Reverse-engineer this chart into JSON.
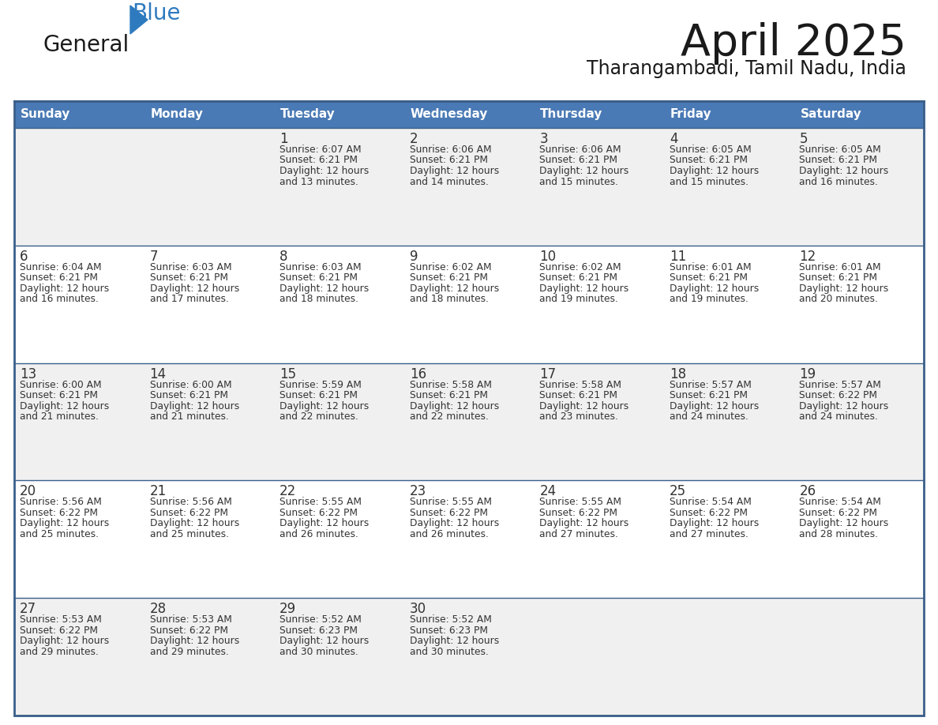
{
  "title": "April 2025",
  "subtitle": "Tharangambadi, Tamil Nadu, India",
  "logo_text1": "General",
  "logo_text2": "Blue",
  "header_color": "#4a7ab5",
  "header_text_color": "#ffffff",
  "odd_row_color": "#f0f0f0",
  "even_row_color": "#ffffff",
  "border_color": "#3a5f8a",
  "text_color": "#333333",
  "days_of_week": [
    "Sunday",
    "Monday",
    "Tuesday",
    "Wednesday",
    "Thursday",
    "Friday",
    "Saturday"
  ],
  "weeks": [
    [
      {
        "day": "",
        "info": ""
      },
      {
        "day": "",
        "info": ""
      },
      {
        "day": "1",
        "info": "Sunrise: 6:07 AM\nSunset: 6:21 PM\nDaylight: 12 hours\nand 13 minutes."
      },
      {
        "day": "2",
        "info": "Sunrise: 6:06 AM\nSunset: 6:21 PM\nDaylight: 12 hours\nand 14 minutes."
      },
      {
        "day": "3",
        "info": "Sunrise: 6:06 AM\nSunset: 6:21 PM\nDaylight: 12 hours\nand 15 minutes."
      },
      {
        "day": "4",
        "info": "Sunrise: 6:05 AM\nSunset: 6:21 PM\nDaylight: 12 hours\nand 15 minutes."
      },
      {
        "day": "5",
        "info": "Sunrise: 6:05 AM\nSunset: 6:21 PM\nDaylight: 12 hours\nand 16 minutes."
      }
    ],
    [
      {
        "day": "6",
        "info": "Sunrise: 6:04 AM\nSunset: 6:21 PM\nDaylight: 12 hours\nand 16 minutes."
      },
      {
        "day": "7",
        "info": "Sunrise: 6:03 AM\nSunset: 6:21 PM\nDaylight: 12 hours\nand 17 minutes."
      },
      {
        "day": "8",
        "info": "Sunrise: 6:03 AM\nSunset: 6:21 PM\nDaylight: 12 hours\nand 18 minutes."
      },
      {
        "day": "9",
        "info": "Sunrise: 6:02 AM\nSunset: 6:21 PM\nDaylight: 12 hours\nand 18 minutes."
      },
      {
        "day": "10",
        "info": "Sunrise: 6:02 AM\nSunset: 6:21 PM\nDaylight: 12 hours\nand 19 minutes."
      },
      {
        "day": "11",
        "info": "Sunrise: 6:01 AM\nSunset: 6:21 PM\nDaylight: 12 hours\nand 19 minutes."
      },
      {
        "day": "12",
        "info": "Sunrise: 6:01 AM\nSunset: 6:21 PM\nDaylight: 12 hours\nand 20 minutes."
      }
    ],
    [
      {
        "day": "13",
        "info": "Sunrise: 6:00 AM\nSunset: 6:21 PM\nDaylight: 12 hours\nand 21 minutes."
      },
      {
        "day": "14",
        "info": "Sunrise: 6:00 AM\nSunset: 6:21 PM\nDaylight: 12 hours\nand 21 minutes."
      },
      {
        "day": "15",
        "info": "Sunrise: 5:59 AM\nSunset: 6:21 PM\nDaylight: 12 hours\nand 22 minutes."
      },
      {
        "day": "16",
        "info": "Sunrise: 5:58 AM\nSunset: 6:21 PM\nDaylight: 12 hours\nand 22 minutes."
      },
      {
        "day": "17",
        "info": "Sunrise: 5:58 AM\nSunset: 6:21 PM\nDaylight: 12 hours\nand 23 minutes."
      },
      {
        "day": "18",
        "info": "Sunrise: 5:57 AM\nSunset: 6:21 PM\nDaylight: 12 hours\nand 24 minutes."
      },
      {
        "day": "19",
        "info": "Sunrise: 5:57 AM\nSunset: 6:22 PM\nDaylight: 12 hours\nand 24 minutes."
      }
    ],
    [
      {
        "day": "20",
        "info": "Sunrise: 5:56 AM\nSunset: 6:22 PM\nDaylight: 12 hours\nand 25 minutes."
      },
      {
        "day": "21",
        "info": "Sunrise: 5:56 AM\nSunset: 6:22 PM\nDaylight: 12 hours\nand 25 minutes."
      },
      {
        "day": "22",
        "info": "Sunrise: 5:55 AM\nSunset: 6:22 PM\nDaylight: 12 hours\nand 26 minutes."
      },
      {
        "day": "23",
        "info": "Sunrise: 5:55 AM\nSunset: 6:22 PM\nDaylight: 12 hours\nand 26 minutes."
      },
      {
        "day": "24",
        "info": "Sunrise: 5:55 AM\nSunset: 6:22 PM\nDaylight: 12 hours\nand 27 minutes."
      },
      {
        "day": "25",
        "info": "Sunrise: 5:54 AM\nSunset: 6:22 PM\nDaylight: 12 hours\nand 27 minutes."
      },
      {
        "day": "26",
        "info": "Sunrise: 5:54 AM\nSunset: 6:22 PM\nDaylight: 12 hours\nand 28 minutes."
      }
    ],
    [
      {
        "day": "27",
        "info": "Sunrise: 5:53 AM\nSunset: 6:22 PM\nDaylight: 12 hours\nand 29 minutes."
      },
      {
        "day": "28",
        "info": "Sunrise: 5:53 AM\nSunset: 6:22 PM\nDaylight: 12 hours\nand 29 minutes."
      },
      {
        "day": "29",
        "info": "Sunrise: 5:52 AM\nSunset: 6:23 PM\nDaylight: 12 hours\nand 30 minutes."
      },
      {
        "day": "30",
        "info": "Sunrise: 5:52 AM\nSunset: 6:23 PM\nDaylight: 12 hours\nand 30 minutes."
      },
      {
        "day": "",
        "info": ""
      },
      {
        "day": "",
        "info": ""
      },
      {
        "day": "",
        "info": ""
      }
    ]
  ]
}
